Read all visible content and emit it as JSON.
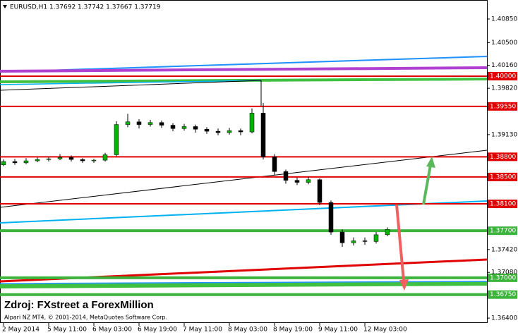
{
  "chart_data": {
    "type": "candlestick",
    "title": "EURUSD,H1  1.37692 1.37742 1.37667 1.37719",
    "source": "Zdroj: FXstreet a ForexMillion",
    "footer": "Alpari NZ MT4, © 2001-2014, MetaQuotes Software Corp.",
    "categories": [
      "2 May 2014",
      null,
      null,
      null,
      "5 May 11:00",
      null,
      null,
      null,
      "6 May 03:00",
      null,
      null,
      null,
      "6 May 19:00",
      null,
      null,
      null,
      "7 May 11:00",
      null,
      null,
      null,
      "8 May 03:00",
      null,
      null,
      null,
      "8 May 19:00",
      null,
      null,
      null,
      "9 May 11:00",
      null,
      null,
      null,
      "12 May 03:00",
      null,
      null
    ],
    "open": [
      1.3868,
      1.3873,
      1.3871,
      1.3874,
      1.3876,
      1.3877,
      1.3879,
      1.3876,
      1.3874,
      1.3875,
      1.3883,
      1.3928,
      1.3932,
      1.3928,
      1.3931,
      1.3927,
      1.3922,
      1.3925,
      1.3921,
      1.3918,
      1.3916,
      1.3919,
      1.3917,
      1.3945,
      1.388,
      1.3858,
      1.3845,
      1.3842,
      1.3846,
      1.3812,
      1.3768,
      1.3752,
      1.3755,
      1.3754,
      1.3764
    ],
    "high": [
      1.3876,
      1.3877,
      1.3878,
      1.3879,
      1.388,
      1.3884,
      1.3882,
      1.3878,
      1.3877,
      1.3886,
      1.3933,
      1.3944,
      1.3936,
      1.3935,
      1.3934,
      1.393,
      1.3929,
      1.3928,
      1.3924,
      1.3922,
      1.3923,
      1.3922,
      1.3952,
      1.396,
      1.3884,
      1.3861,
      1.3849,
      1.385,
      1.3848,
      1.3815,
      1.3772,
      1.376,
      1.376,
      1.3768,
      1.3775
    ],
    "low": [
      1.3866,
      1.3868,
      1.3869,
      1.3872,
      1.3873,
      1.3875,
      1.3873,
      1.3871,
      1.3871,
      1.3873,
      1.3881,
      1.3924,
      1.3922,
      1.3925,
      1.3923,
      1.3918,
      1.3919,
      1.3916,
      1.3914,
      1.3912,
      1.3913,
      1.3912,
      1.3915,
      1.3876,
      1.3853,
      1.384,
      1.3838,
      1.3839,
      1.3808,
      1.3764,
      1.3746,
      1.3748,
      1.3749,
      1.3751,
      1.3762
    ],
    "close": [
      1.3873,
      1.3871,
      1.3874,
      1.3876,
      1.3877,
      1.3879,
      1.3876,
      1.3874,
      1.3875,
      1.3883,
      1.3928,
      1.3932,
      1.3928,
      1.3931,
      1.3927,
      1.3922,
      1.3925,
      1.3921,
      1.3918,
      1.3916,
      1.3919,
      1.3917,
      1.3945,
      1.388,
      1.3858,
      1.3845,
      1.3842,
      1.3846,
      1.3812,
      1.3768,
      1.3752,
      1.3755,
      1.3754,
      1.3764,
      1.3772
    ],
    "up_color": "#00b400",
    "down_color": "#000000",
    "ylim": [
      1.36327,
      1.41133
    ],
    "yticks": [
      {
        "value": 1.4085,
        "label": "1.40850"
      },
      {
        "value": 1.405,
        "label": "1.40500"
      },
      {
        "value": 1.4016,
        "label": "1.40160"
      },
      {
        "value": 1.3982,
        "label": "1.39820"
      },
      {
        "value": 1.3913,
        "label": "1.39130"
      },
      {
        "value": 1.3742,
        "label": "1.37420"
      },
      {
        "value": 1.3708,
        "label": "1.37080"
      },
      {
        "value": 1.364,
        "label": "1.36400"
      }
    ],
    "levels": [
      {
        "value": 1.4,
        "label": "1.40000",
        "color": "#e00000"
      },
      {
        "value": 1.3955,
        "label": "1.39550",
        "color": "#e00000"
      },
      {
        "value": 1.388,
        "label": "1.38800",
        "color": "#e00000"
      },
      {
        "value": 1.385,
        "label": "1.38500",
        "color": "#e00000"
      },
      {
        "value": 1.381,
        "label": "1.38100",
        "color": "#e00000"
      },
      {
        "value": 1.377,
        "label": "1.37700",
        "color": "#3cb43c"
      },
      {
        "value": 1.37,
        "label": "1.37000",
        "color": "#3cb43c"
      },
      {
        "value": 1.3675,
        "label": "1.36750",
        "color": "#3cb43c"
      }
    ]
  }
}
